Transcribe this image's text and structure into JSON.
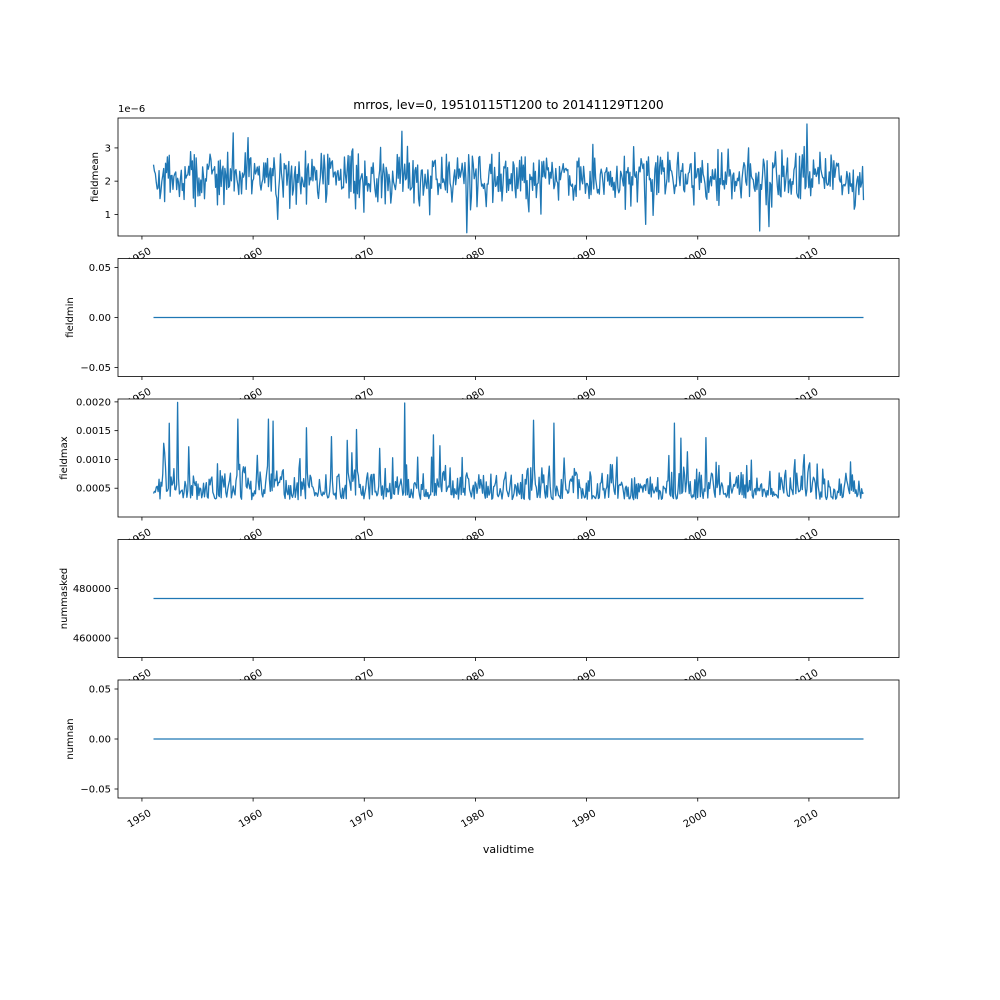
{
  "chart_data": {
    "type": "line",
    "title": "mrros, lev=0, 19510115T1200 to 20141129T1200",
    "xlabel": "validtime",
    "line_color": "#1f77b4",
    "x_range": [
      1951.04,
      2014.91
    ],
    "x_ticks": [
      1950,
      1960,
      1970,
      1980,
      1990,
      2000,
      2010
    ],
    "x_tick_labels": [
      "1950",
      "1960",
      "1970",
      "1980",
      "1990",
      "2000",
      "2010"
    ],
    "x_tick_rotation": 30,
    "subplots": [
      {
        "ylabel": "fieldmean",
        "offset_text": "1e−6",
        "units_scale": "1e-6",
        "yticks": [
          1,
          2,
          3
        ],
        "ytick_labels": [
          "1",
          "2",
          "3"
        ],
        "ylim": [
          0.35,
          3.9
        ],
        "series": {
          "kind": "noisy",
          "n": 767,
          "seed": 42,
          "mean": 2.1,
          "std": 0.5,
          "min": 0.45,
          "max": 3.75,
          "approx": true,
          "anomalies": [
            {
              "x": 1958.2,
              "v": 3.45
            },
            {
              "x": 1962.2,
              "v": 0.85
            },
            {
              "x": 1973.4,
              "v": 3.5
            },
            {
              "x": 1979.2,
              "v": 0.45
            },
            {
              "x": 1995.3,
              "v": 0.7
            },
            {
              "x": 2005.6,
              "v": 0.5
            },
            {
              "x": 2009.8,
              "v": 3.72
            }
          ]
        }
      },
      {
        "ylabel": "fieldmin",
        "yticks": [
          -0.05,
          0.0,
          0.05
        ],
        "ytick_labels": [
          "−0.05",
          "0.00",
          "0.05"
        ],
        "ylim": [
          -0.059,
          0.059
        ],
        "series": {
          "kind": "constant",
          "value": 0.0,
          "n": 767
        }
      },
      {
        "ylabel": "fieldmax",
        "yticks": [
          0.0005,
          0.001,
          0.0015,
          0.002
        ],
        "ytick_labels": [
          "0.0005",
          "0.0010",
          "0.0015",
          "0.0020"
        ],
        "ylim": [
          0.0,
          0.00205
        ],
        "series": {
          "kind": "spiky",
          "n": 767,
          "seed": 7,
          "base": 0.0003,
          "min": 8e-05,
          "max": 0.00199,
          "approx": true,
          "anomalies": [
            {
              "x": 1958.6,
              "v": 0.0017
            },
            {
              "x": 1961.4,
              "v": 0.0017
            },
            {
              "x": 1964.8,
              "v": 0.00155
            },
            {
              "x": 1969.3,
              "v": 0.00152
            },
            {
              "x": 1973.6,
              "v": 0.00198
            },
            {
              "x": 1987.1,
              "v": 0.00163
            },
            {
              "x": 1997.9,
              "v": 0.00163
            }
          ]
        }
      },
      {
        "ylabel": "nummasked",
        "yticks": [
          460000,
          480000
        ],
        "ytick_labels": [
          "460000",
          "480000"
        ],
        "ylim": [
          452200,
          499800
        ],
        "series": {
          "kind": "constant",
          "value": 476000,
          "n": 767
        }
      },
      {
        "ylabel": "numnan",
        "yticks": [
          -0.05,
          0.0,
          0.05
        ],
        "ytick_labels": [
          "−0.05",
          "0.00",
          "0.05"
        ],
        "ylim": [
          -0.059,
          0.059
        ],
        "series": {
          "kind": "constant",
          "value": 0.0,
          "n": 767
        }
      }
    ]
  }
}
